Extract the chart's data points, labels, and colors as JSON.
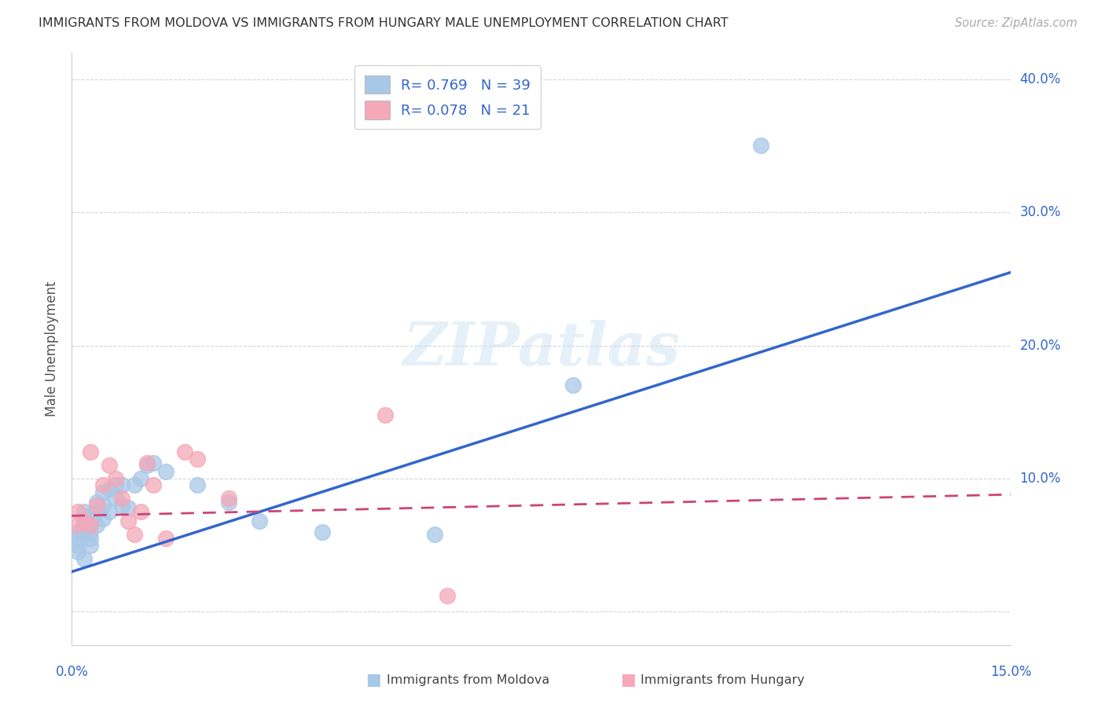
{
  "title": "IMMIGRANTS FROM MOLDOVA VS IMMIGRANTS FROM HUNGARY MALE UNEMPLOYMENT CORRELATION CHART",
  "source": "Source: ZipAtlas.com",
  "ylabel": "Male Unemployment",
  "xlim": [
    0.0,
    0.15
  ],
  "ylim": [
    -0.025,
    0.42
  ],
  "ytick_positions": [
    0.0,
    0.1,
    0.2,
    0.3,
    0.4
  ],
  "ytick_labels": [
    "",
    "10.0%",
    "20.0%",
    "30.0%",
    "40.0%"
  ],
  "xtick_positions": [
    0.0,
    0.03,
    0.06,
    0.09,
    0.12,
    0.15
  ],
  "xtick_labels_show": [
    "0.0%",
    "",
    "",
    "",
    "",
    "15.0%"
  ],
  "moldova_color": "#a8c8e8",
  "hungary_color": "#f4a8b8",
  "moldova_line_color": "#3366cc",
  "hungary_line_color": "#cc4477",
  "legend_text_color": "#3366cc",
  "grid_color": "#cccccc",
  "moldova_R": 0.769,
  "moldova_N": 39,
  "hungary_R": 0.078,
  "hungary_N": 21,
  "moldova_line_x0": 0.0,
  "moldova_line_y0": 0.03,
  "moldova_line_x1": 0.15,
  "moldova_line_y1": 0.255,
  "hungary_line_x0": 0.0,
  "hungary_line_y0": 0.072,
  "hungary_line_x1": 0.15,
  "hungary_line_y1": 0.088,
  "moldova_x": [
    0.001,
    0.001,
    0.001,
    0.001,
    0.002,
    0.002,
    0.002,
    0.002,
    0.002,
    0.003,
    0.003,
    0.003,
    0.003,
    0.003,
    0.004,
    0.004,
    0.004,
    0.005,
    0.005,
    0.005,
    0.006,
    0.006,
    0.007,
    0.007,
    0.008,
    0.008,
    0.009,
    0.01,
    0.011,
    0.012,
    0.013,
    0.015,
    0.02,
    0.025,
    0.03,
    0.04,
    0.058,
    0.08,
    0.11
  ],
  "moldova_y": [
    0.06,
    0.055,
    0.05,
    0.045,
    0.075,
    0.068,
    0.065,
    0.058,
    0.04,
    0.072,
    0.068,
    0.06,
    0.055,
    0.05,
    0.082,
    0.075,
    0.065,
    0.09,
    0.08,
    0.07,
    0.092,
    0.075,
    0.095,
    0.085,
    0.095,
    0.08,
    0.078,
    0.095,
    0.1,
    0.11,
    0.112,
    0.105,
    0.095,
    0.082,
    0.068,
    0.06,
    0.058,
    0.17,
    0.35
  ],
  "hungary_x": [
    0.001,
    0.001,
    0.002,
    0.003,
    0.003,
    0.004,
    0.005,
    0.006,
    0.007,
    0.008,
    0.009,
    0.01,
    0.011,
    0.012,
    0.013,
    0.015,
    0.018,
    0.02,
    0.025,
    0.05,
    0.06
  ],
  "hungary_y": [
    0.075,
    0.065,
    0.068,
    0.12,
    0.065,
    0.08,
    0.095,
    0.11,
    0.1,
    0.085,
    0.068,
    0.058,
    0.075,
    0.112,
    0.095,
    0.055,
    0.12,
    0.115,
    0.085,
    0.148,
    0.012
  ]
}
